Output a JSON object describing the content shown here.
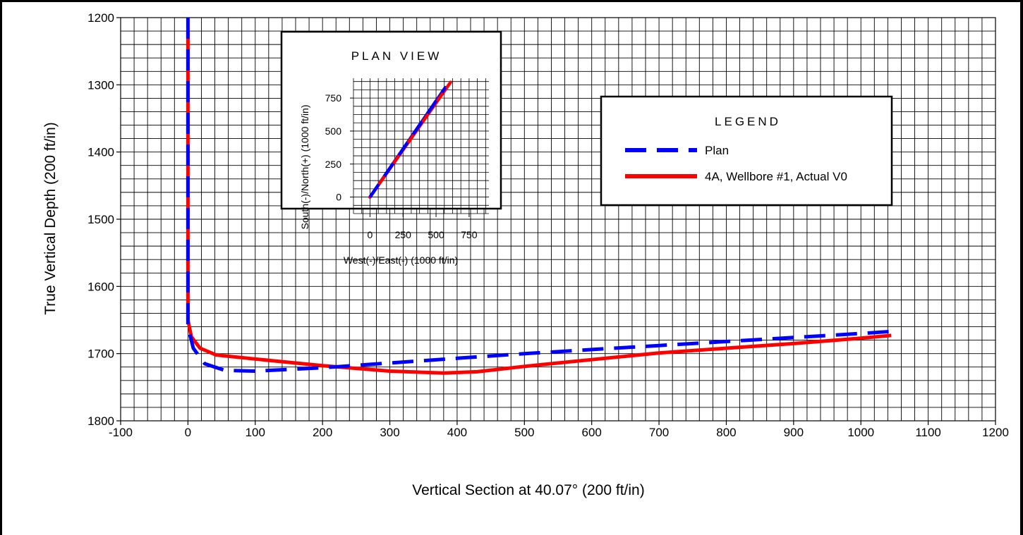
{
  "chart_data": [
    {
      "type": "line",
      "title": "",
      "xlabel": "Vertical Section at 40.07° (200 ft/in)",
      "ylabel": "True Vertical Depth (200 ft/in)",
      "xlim": [
        -100,
        1200
      ],
      "ylim": [
        1800,
        1200
      ],
      "y_inverted": true,
      "xticks": [
        "-100",
        "0",
        "100",
        "200",
        "300",
        "400",
        "500",
        "600",
        "700",
        "800",
        "900",
        "1000",
        "1100",
        "1200"
      ],
      "yticks": [
        "1200",
        "1300",
        "1400",
        "1500",
        "1600",
        "1700",
        "1800"
      ],
      "grid": true,
      "series": [
        {
          "name": "Plan",
          "color": "#0000ff",
          "style": "dashed",
          "points": [
            [
              0,
              1200
            ],
            [
              0,
              1300
            ],
            [
              0,
              1400
            ],
            [
              0,
              1500
            ],
            [
              0,
              1600
            ],
            [
              0,
              1660
            ],
            [
              8,
              1692
            ],
            [
              25,
              1715
            ],
            [
              55,
              1725
            ],
            [
              100,
              1726
            ],
            [
              200,
              1721
            ],
            [
              300,
              1714
            ],
            [
              400,
              1707
            ],
            [
              500,
              1700
            ],
            [
              600,
              1694
            ],
            [
              700,
              1688
            ],
            [
              800,
              1682
            ],
            [
              900,
              1676
            ],
            [
              1000,
              1670
            ],
            [
              1045,
              1667
            ]
          ]
        },
        {
          "name": "4A, Wellbore #1, Actual V0",
          "color": "#ff0000",
          "style": "solid",
          "points": [
            [
              0,
              1220
            ],
            [
              0,
              1300
            ],
            [
              0,
              1400
            ],
            [
              0,
              1500
            ],
            [
              0,
              1600
            ],
            [
              0,
              1650
            ],
            [
              5,
              1675
            ],
            [
              18,
              1692
            ],
            [
              42,
              1702
            ],
            [
              100,
              1708
            ],
            [
              200,
              1718
            ],
            [
              300,
              1726
            ],
            [
              380,
              1729
            ],
            [
              430,
              1727
            ],
            [
              500,
              1719
            ],
            [
              600,
              1709
            ],
            [
              700,
              1699
            ],
            [
              800,
              1692
            ],
            [
              900,
              1685
            ],
            [
              1000,
              1677
            ],
            [
              1045,
              1673
            ]
          ]
        }
      ],
      "legend": "right"
    },
    {
      "type": "line",
      "title": "PLAN VIEW",
      "xlabel": "West(-)/East(-) (1000 ft/in)",
      "ylabel": "South(-)/North(+) (1000 ft/in)",
      "xlim": [
        -125,
        900
      ],
      "ylim": [
        -125,
        900
      ],
      "xticks": [
        "0",
        "250",
        "500",
        "750"
      ],
      "yticks": [
        "0",
        "250",
        "500",
        "750"
      ],
      "grid": true,
      "series": [
        {
          "name": "Plan",
          "color": "#0000ff",
          "style": "solid",
          "points": [
            [
              0,
              0
            ],
            [
              570,
              830
            ]
          ]
        },
        {
          "name": "4A, Wellbore #1, Actual V0",
          "color": "#ff0000",
          "style": "solid",
          "points": [
            [
              0,
              0
            ],
            [
              610,
              870
            ]
          ]
        }
      ]
    }
  ],
  "legend": {
    "title": "LEGEND",
    "items": [
      {
        "label": "Plan",
        "color": "#0000ff",
        "style": "dashed"
      },
      {
        "label": "4A, Wellbore #1, Actual V0",
        "color": "#ff0000",
        "style": "solid"
      }
    ]
  }
}
